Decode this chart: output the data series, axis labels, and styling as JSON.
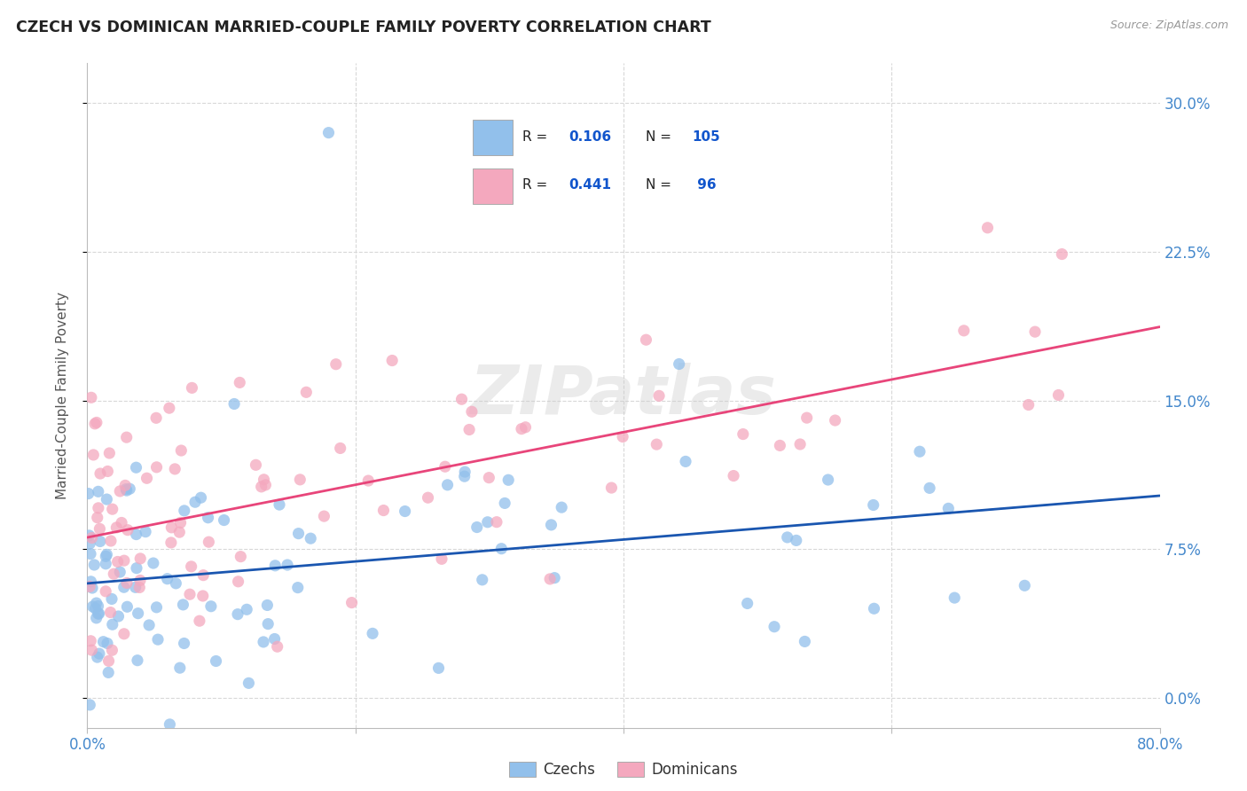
{
  "title": "CZECH VS DOMINICAN MARRIED-COUPLE FAMILY POVERTY CORRELATION CHART",
  "source": "Source: ZipAtlas.com",
  "ylabel": "Married-Couple Family Poverty",
  "ytick_values": [
    0.0,
    7.5,
    15.0,
    22.5,
    30.0
  ],
  "xlim": [
    0.0,
    80.0
  ],
  "ylim": [
    -1.5,
    32.0
  ],
  "czech_color": "#92c0eb",
  "dominican_color": "#f4a8be",
  "czech_line_color": "#1a56b0",
  "dominican_line_color": "#e8457a",
  "czech_R": 0.106,
  "czech_N": 105,
  "dominican_R": 0.441,
  "dominican_N": 96,
  "legend_label_czech": "Czechs",
  "legend_label_dominican": "Dominicans",
  "watermark": "ZIPatlas",
  "background_color": "#ffffff",
  "grid_color": "#d8d8d8",
  "title_color": "#222222",
  "axis_value_color": "#4488cc",
  "legend_R_N_color": "#1155cc"
}
